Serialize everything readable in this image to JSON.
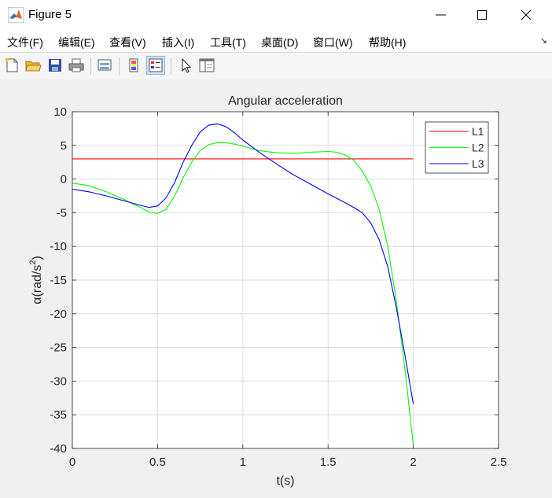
{
  "window": {
    "title": "Figure 5"
  },
  "menu": [
    "文件(F)",
    "编辑(E)",
    "查看(V)",
    "插入(I)",
    "工具(T)",
    "桌面(D)",
    "窗口(W)",
    "帮助(H)"
  ],
  "toolbar": {
    "buttons": [
      "new-file",
      "open",
      "save",
      "print",
      "link-figure",
      "colorbar",
      "legend",
      "pointer",
      "property-inspector"
    ]
  },
  "chart_data": {
    "type": "line",
    "title": "Angular acceleration",
    "xlabel": "t(s)",
    "ylabel": "α(rad/s",
    "ylabel_sup": "2",
    "ylabel_end": ")",
    "xlim": [
      0,
      2.5
    ],
    "ylim": [
      -40,
      10
    ],
    "xticks": [
      "0",
      "0.5",
      "1",
      "1.5",
      "2",
      "2.5"
    ],
    "yticks": [
      "10",
      "5",
      "0",
      "-5",
      "-10",
      "-15",
      "-20",
      "-25",
      "-30",
      "-35",
      "-40"
    ],
    "grid": true,
    "legend": "top-right",
    "series": [
      {
        "name": "L1",
        "color": "#ff0000",
        "x": [
          0,
          2
        ],
        "y": [
          3,
          3
        ]
      },
      {
        "name": "L2",
        "color": "#00ff00",
        "x": [
          0,
          0.1,
          0.2,
          0.3,
          0.4,
          0.45,
          0.5,
          0.55,
          0.6,
          0.65,
          0.7,
          0.75,
          0.8,
          0.85,
          0.9,
          0.95,
          1.0,
          1.1,
          1.2,
          1.3,
          1.4,
          1.5,
          1.55,
          1.6,
          1.65,
          1.7,
          1.75,
          1.8,
          1.85,
          1.9,
          1.95,
          2.0
        ],
        "y": [
          -0.6,
          -1.0,
          -1.9,
          -3.0,
          -4.2,
          -4.9,
          -5.1,
          -4.5,
          -2.5,
          0.2,
          2.5,
          4.2,
          5.1,
          5.4,
          5.4,
          5.2,
          4.9,
          4.2,
          3.9,
          3.8,
          4.0,
          4.1,
          4.0,
          3.6,
          2.8,
          1.2,
          -1.0,
          -4.5,
          -10.0,
          -18.0,
          -28.0,
          -39.5
        ]
      },
      {
        "name": "L3",
        "color": "#0000ff",
        "x": [
          0,
          0.1,
          0.2,
          0.3,
          0.4,
          0.45,
          0.5,
          0.55,
          0.6,
          0.65,
          0.7,
          0.75,
          0.8,
          0.85,
          0.9,
          0.95,
          1.0,
          1.1,
          1.2,
          1.3,
          1.4,
          1.5,
          1.6,
          1.65,
          1.7,
          1.75,
          1.8,
          1.85,
          1.9,
          1.95,
          2.0
        ],
        "y": [
          -1.5,
          -1.9,
          -2.5,
          -3.2,
          -3.9,
          -4.2,
          -4.0,
          -2.8,
          -0.5,
          2.5,
          5.0,
          7.0,
          8.0,
          8.2,
          7.8,
          6.9,
          5.8,
          3.9,
          2.2,
          0.6,
          -0.8,
          -2.2,
          -3.5,
          -4.2,
          -5.0,
          -6.5,
          -9.0,
          -13.0,
          -19.0,
          -26.0,
          -33.4
        ]
      }
    ]
  }
}
